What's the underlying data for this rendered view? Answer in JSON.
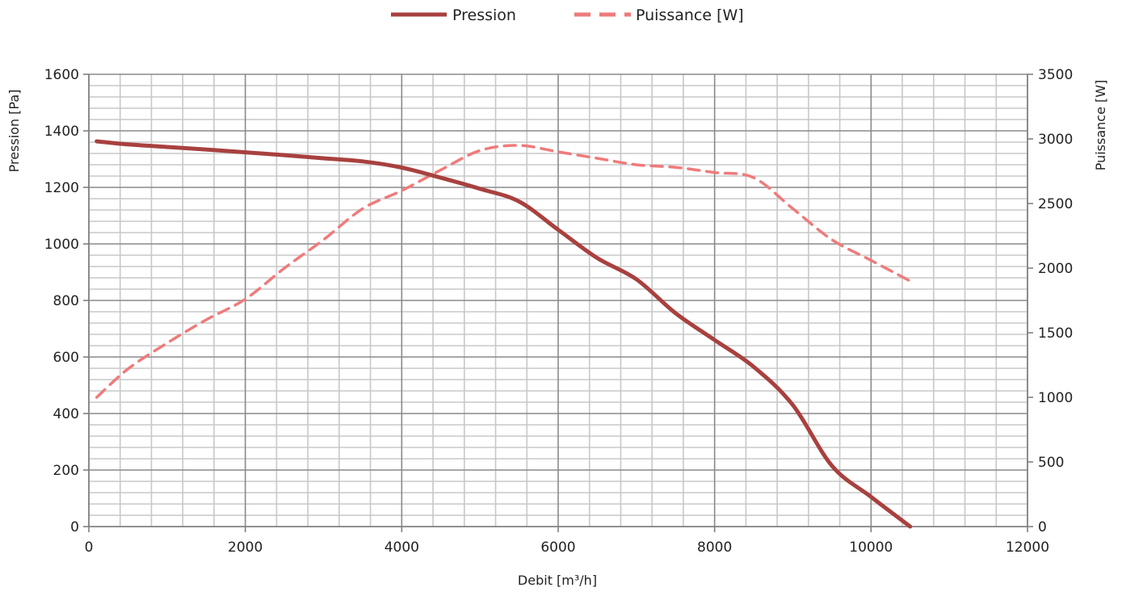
{
  "chart_data": {
    "type": "line",
    "xlabel": "Debit [m³/h]",
    "ylabel": "Pression [Pa]",
    "y2label": "Puissance [W]",
    "xlim": [
      0,
      12000
    ],
    "ylim": [
      0,
      1600
    ],
    "y2lim": [
      0,
      3500
    ],
    "x_ticks": [
      "0",
      "2000",
      "4000",
      "6000",
      "8000",
      "10000",
      "12000"
    ],
    "y_ticks": [
      "0",
      "200",
      "400",
      "600",
      "800",
      "1000",
      "1200",
      "1400",
      "1600"
    ],
    "y2_ticks": [
      "0",
      "500",
      "1000",
      "1500",
      "2000",
      "2500",
      "3000",
      "3500"
    ],
    "grid": true,
    "legend_position": "top-center",
    "series": [
      {
        "name": "Pression",
        "axis": "left",
        "style": "solid",
        "color": "#a8413f",
        "x": [
          100,
          500,
          1000,
          1500,
          2000,
          2500,
          3000,
          3500,
          4000,
          4500,
          5000,
          5500,
          6000,
          6500,
          7000,
          7500,
          8000,
          8500,
          9000,
          9500,
          10000,
          10500
        ],
        "y": [
          1363,
          1352,
          1343,
          1334,
          1324,
          1314,
          1303,
          1292,
          1270,
          1234,
          1195,
          1150,
          1050,
          950,
          875,
          755,
          660,
          565,
          430,
          215,
          105,
          0
        ]
      },
      {
        "name": "Puissance [W]",
        "axis": "right",
        "style": "dashed",
        "color": "#ef7b7b",
        "x": [
          100,
          500,
          1000,
          1500,
          2000,
          2500,
          3000,
          3500,
          4000,
          4500,
          5000,
          5500,
          6000,
          6500,
          7000,
          7500,
          8000,
          8500,
          9000,
          9500,
          10000,
          10500
        ],
        "y": [
          1000,
          1220,
          1420,
          1600,
          1760,
          2000,
          2220,
          2460,
          2600,
          2760,
          2910,
          2950,
          2900,
          2850,
          2800,
          2780,
          2740,
          2700,
          2460,
          2220,
          2060,
          1900
        ]
      }
    ]
  }
}
